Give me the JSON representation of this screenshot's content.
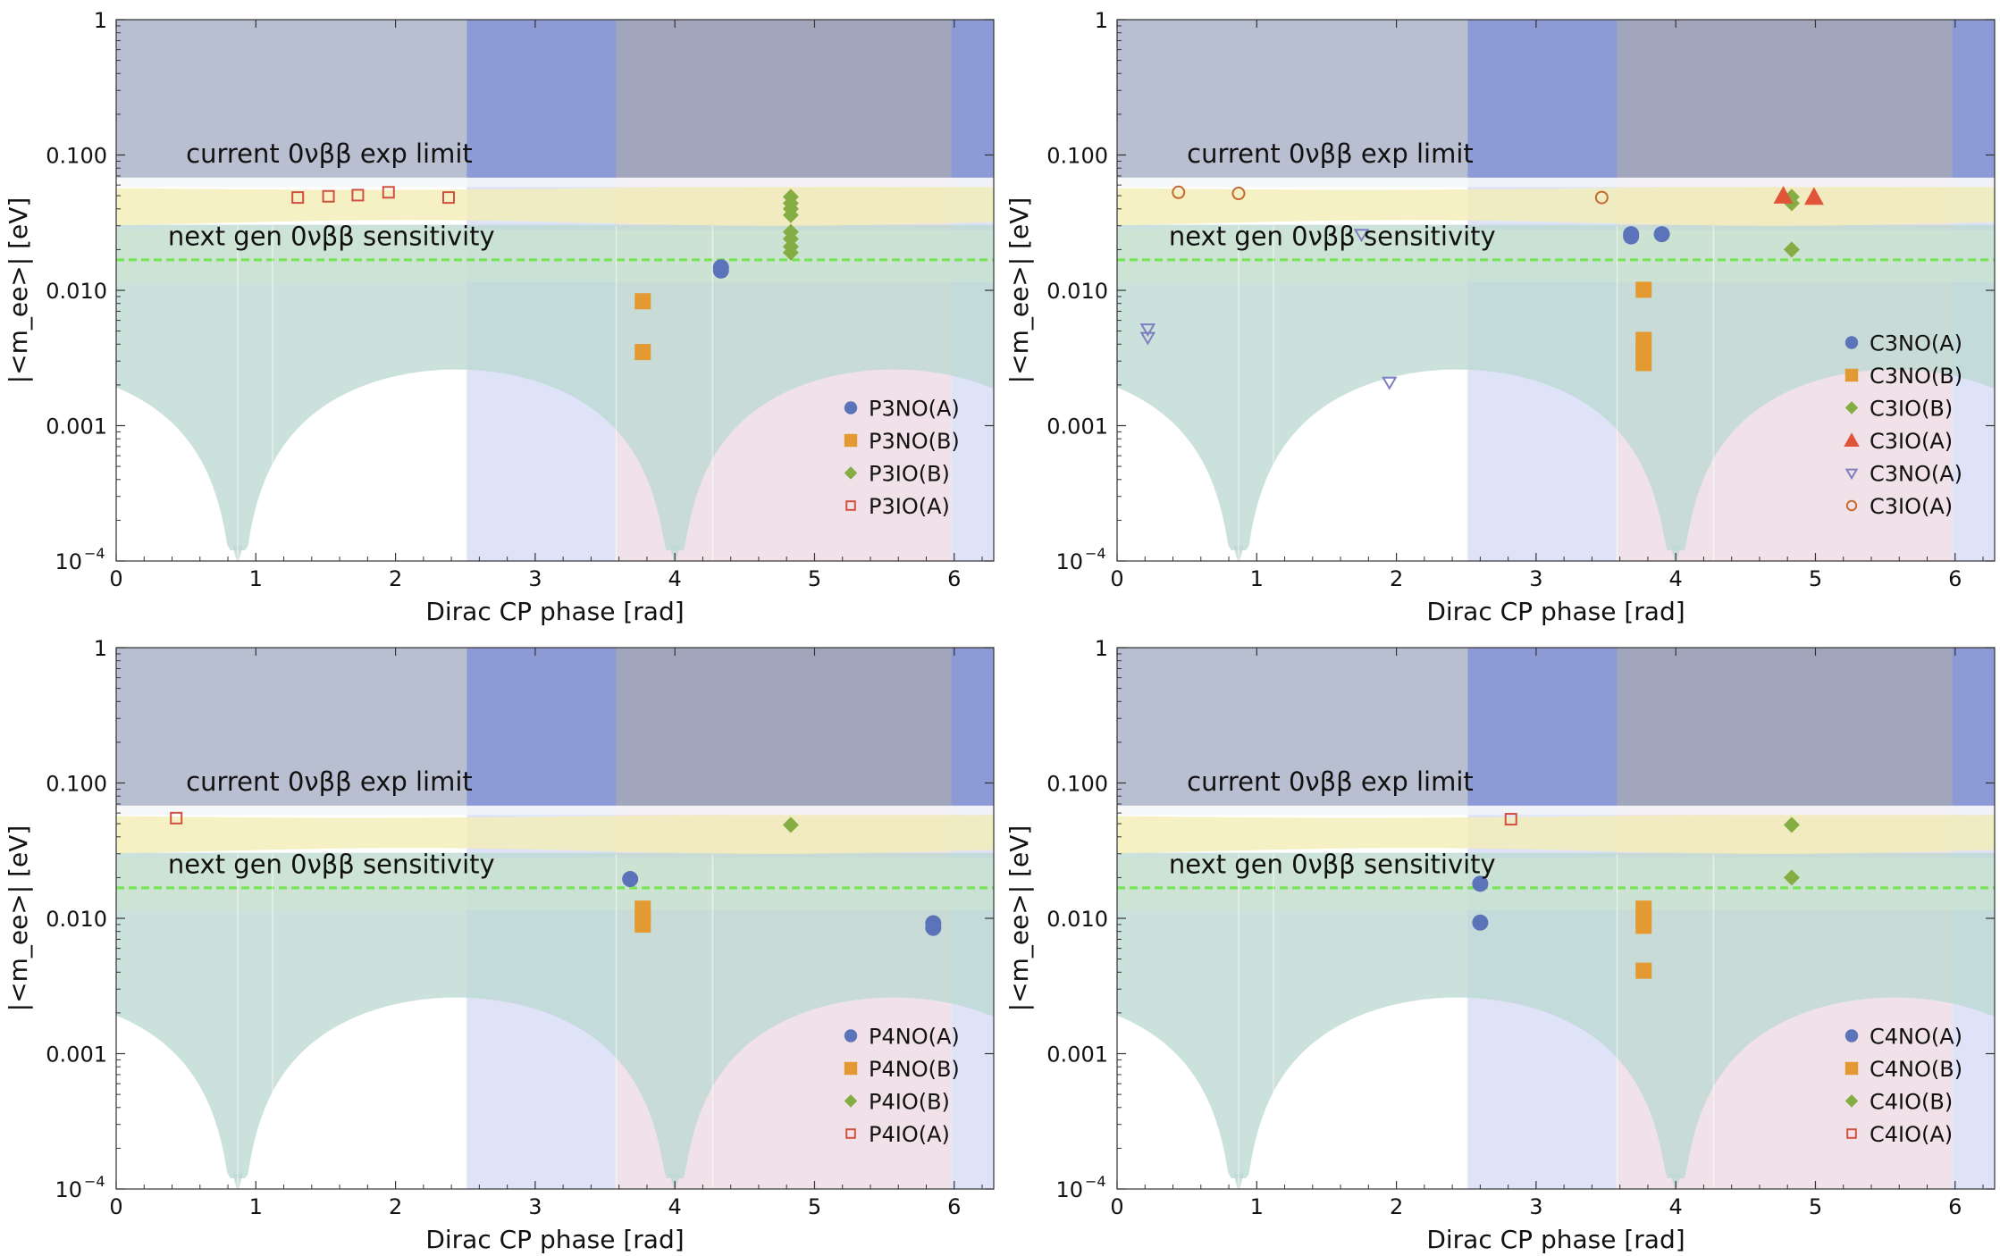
{
  "colors": {
    "normal_band": "#bcd9d2",
    "inverted_band": "#f3eeb6",
    "exp_limit_band": "#b3bccd",
    "delta_region_blue": "#7e8fd7",
    "delta_region_lightblue": "#dfe3f8",
    "delta_region_pink": "#f0e2e8",
    "sensitivity_band": "#cfe7d0",
    "sensitivity_line": "#7be35a",
    "series_circle": "#5b73b8",
    "series_square": "#e39a32",
    "series_diamond": "#84ad43",
    "series_triangle": "#e0553a",
    "series_open_tri": "#7f7ec1",
    "series_open_square": "#d0513d",
    "series_open_circle": "#c46a2f"
  },
  "annotations": {
    "current_limit": "current 0νββ exp limit",
    "next_gen": "next gen 0νββ sensitivity"
  },
  "chart_data": [
    {
      "type": "scatter",
      "panel": "top-left",
      "xlabel": "Dirac CP phase [rad]",
      "ylabel": "|<m_ee>| [eV]",
      "xlim": [
        0,
        6.283
      ],
      "ylim": [
        0.0001,
        1
      ],
      "yscale": "log",
      "xticks": [
        "0",
        "1",
        "2",
        "3",
        "4",
        "5",
        "6"
      ],
      "yticks": [
        "1",
        "0.100",
        "0.010",
        "0.001",
        "10^-4"
      ],
      "legend_position": "bottom-right",
      "series": [
        {
          "name": "P3NO(A)",
          "marker": "circle",
          "points": [
            [
              4.33,
              0.0148
            ],
            [
              4.33,
              0.014
            ]
          ]
        },
        {
          "name": "P3NO(B)",
          "marker": "square",
          "points": [
            [
              3.77,
              0.0083
            ],
            [
              3.77,
              0.0035
            ]
          ]
        },
        {
          "name": "P3IO(B)",
          "marker": "diamond",
          "points": [
            [
              4.83,
              0.049
            ],
            [
              4.83,
              0.044
            ],
            [
              4.83,
              0.04
            ],
            [
              4.83,
              0.036
            ],
            [
              4.83,
              0.027
            ],
            [
              4.83,
              0.024
            ],
            [
              4.83,
              0.021
            ],
            [
              4.83,
              0.019
            ]
          ]
        },
        {
          "name": "P3IO(A)",
          "marker": "open-square",
          "points": [
            [
              1.3,
              0.0485
            ],
            [
              1.52,
              0.0495
            ],
            [
              1.73,
              0.0505
            ],
            [
              1.95,
              0.053
            ],
            [
              2.38,
              0.0485
            ]
          ]
        }
      ]
    },
    {
      "type": "scatter",
      "panel": "top-right",
      "xlabel": "Dirac CP phase [rad]",
      "ylabel": "|<m_ee>| [eV]",
      "xlim": [
        0,
        6.283
      ],
      "ylim": [
        0.0001,
        1
      ],
      "yscale": "log",
      "xticks": [
        "0",
        "1",
        "2",
        "3",
        "4",
        "5",
        "6"
      ],
      "yticks": [
        "1",
        "0.100",
        "0.010",
        "0.001",
        "10^-4"
      ],
      "legend_position": "bottom-right",
      "series": [
        {
          "name": "C3NO(A)",
          "marker": "circle",
          "points": [
            [
              3.68,
              0.026
            ],
            [
              3.68,
              0.025
            ],
            [
              3.9,
              0.026
            ]
          ]
        },
        {
          "name": "C3NO(B)",
          "marker": "square",
          "points": [
            [
              3.77,
              0.0101
            ],
            [
              3.77,
              0.0043
            ],
            [
              3.77,
              0.0035
            ],
            [
              3.77,
              0.0029
            ]
          ]
        },
        {
          "name": "C3IO(B)",
          "marker": "diamond",
          "points": [
            [
              4.83,
              0.049
            ],
            [
              4.83,
              0.044
            ],
            [
              4.83,
              0.02
            ]
          ]
        },
        {
          "name": "C3IO(A)",
          "marker": "triangle",
          "points": [
            [
              4.77,
              0.05
            ],
            [
              4.99,
              0.049
            ]
          ]
        },
        {
          "name": "C3NO(A)",
          "marker": "open-triangle",
          "points": [
            [
              0.22,
              0.0052
            ],
            [
              0.22,
              0.0045
            ],
            [
              1.95,
              0.0021
            ],
            [
              1.75,
              0.026
            ]
          ]
        },
        {
          "name": "C3IO(A)",
          "marker": "open-circle",
          "points": [
            [
              0.44,
              0.053
            ],
            [
              0.87,
              0.052
            ],
            [
              3.47,
              0.0485
            ]
          ]
        }
      ]
    },
    {
      "type": "scatter",
      "panel": "bottom-left",
      "xlabel": "Dirac CP phase [rad]",
      "ylabel": "|<m_ee>| [eV]",
      "xlim": [
        0,
        6.283
      ],
      "ylim": [
        0.0001,
        1
      ],
      "yscale": "log",
      "xticks": [
        "0",
        "1",
        "2",
        "3",
        "4",
        "5",
        "6"
      ],
      "yticks": [
        "1",
        "0.100",
        "0.010",
        "0.001",
        "10^-4"
      ],
      "legend_position": "bottom-right",
      "series": [
        {
          "name": "P4NO(A)",
          "marker": "circle",
          "points": [
            [
              3.68,
              0.0195
            ],
            [
              5.85,
              0.0092
            ],
            [
              5.85,
              0.0085
            ]
          ]
        },
        {
          "name": "P4NO(B)",
          "marker": "square",
          "points": [
            [
              3.77,
              0.0118
            ],
            [
              3.77,
              0.01
            ],
            [
              3.77,
              0.009
            ]
          ]
        },
        {
          "name": "P4IO(B)",
          "marker": "diamond",
          "points": [
            [
              4.83,
              0.049
            ]
          ]
        },
        {
          "name": "P4IO(A)",
          "marker": "open-square",
          "points": [
            [
              0.43,
              0.055
            ]
          ]
        }
      ]
    },
    {
      "type": "scatter",
      "panel": "bottom-right",
      "xlabel": "Dirac CP phase [rad]",
      "ylabel": "|<m_ee>| [eV]",
      "xlim": [
        0,
        6.283
      ],
      "ylim": [
        0.0001,
        1
      ],
      "yscale": "log",
      "xticks": [
        "0",
        "1",
        "2",
        "3",
        "4",
        "5",
        "6"
      ],
      "yticks": [
        "1",
        "0.100",
        "0.010",
        "0.001",
        "10^-4"
      ],
      "legend_position": "bottom-right",
      "series": [
        {
          "name": "C4NO(A)",
          "marker": "circle",
          "points": [
            [
              2.6,
              0.018
            ],
            [
              2.6,
              0.0093
            ]
          ]
        },
        {
          "name": "C4NO(B)",
          "marker": "square",
          "points": [
            [
              3.77,
              0.0118
            ],
            [
              3.77,
              0.01
            ],
            [
              3.77,
              0.0088
            ],
            [
              3.77,
              0.0041
            ]
          ]
        },
        {
          "name": "C4IO(B)",
          "marker": "diamond",
          "points": [
            [
              4.83,
              0.049
            ],
            [
              4.83,
              0.02
            ]
          ]
        },
        {
          "name": "C4IO(A)",
          "marker": "open-square",
          "points": [
            [
              2.82,
              0.054
            ]
          ]
        }
      ]
    }
  ]
}
